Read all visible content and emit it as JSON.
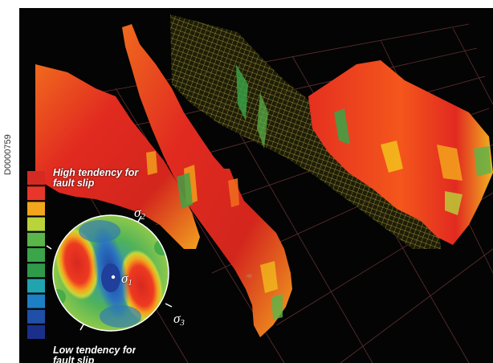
{
  "image_code": "D0000759",
  "legend": {
    "high_line1": "High tendency for",
    "high_line2": "fault slip",
    "low_line1": "Low tendency for",
    "low_line2": "fault slip",
    "swatch_colors": [
      "#d42a22",
      "#e8362b",
      "#f3a51c",
      "#b8d43a",
      "#5ab54a",
      "#3aa549",
      "#2e9a4a",
      "#1fa4b0",
      "#1d7fc4",
      "#1f4fa6",
      "#1a2f8a"
    ]
  },
  "stereonet": {
    "sigma1_symbol": "σ",
    "sigma1_index": "1",
    "sigma2_symbol": "σ",
    "sigma2_index": "2",
    "sigma3_symbol": "σ",
    "sigma3_index": "3"
  },
  "scene": {
    "background": "#040404",
    "grid_color": "#7a3a3a",
    "surface_red": "#e12a20",
    "surface_orange": "#f06a1e",
    "mesh_yellow": "#d8c24a",
    "small_label": "up"
  }
}
